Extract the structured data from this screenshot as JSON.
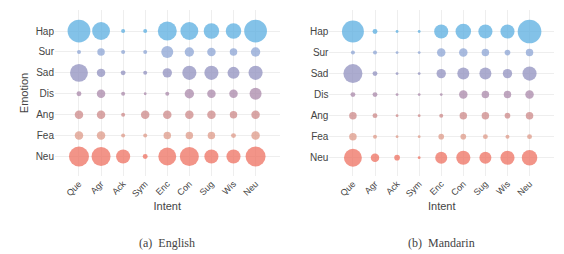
{
  "chart_data": [
    {
      "type": "bubble",
      "title": "(a)  English",
      "xlabel": "Intent",
      "ylabel": "Emotion",
      "categories": [
        "Que",
        "Agr",
        "Ack",
        "Sym",
        "Enc",
        "Con",
        "Sug",
        "Wis",
        "Neu"
      ],
      "grid": true,
      "series": [
        {
          "name": "Hap",
          "color": "#5aaee0",
          "sizes": [
            130,
            80,
            4,
            4,
            90,
            80,
            60,
            60,
            130
          ]
        },
        {
          "name": "Sur",
          "color": "#8ca4d4",
          "sizes": [
            4,
            14,
            4,
            4,
            36,
            22,
            18,
            14,
            22
          ]
        },
        {
          "name": "Sad",
          "color": "#9090bf",
          "sizes": [
            80,
            18,
            6,
            4,
            22,
            50,
            50,
            36,
            50
          ]
        },
        {
          "name": "Dis",
          "color": "#aa88aa",
          "sizes": [
            6,
            18,
            4,
            2,
            4,
            22,
            18,
            18,
            36
          ]
        },
        {
          "name": "Ang",
          "color": "#cc8888",
          "sizes": [
            18,
            18,
            4,
            18,
            18,
            18,
            18,
            14,
            18
          ]
        },
        {
          "name": "Fea",
          "color": "#dd9988",
          "sizes": [
            18,
            18,
            4,
            4,
            14,
            14,
            14,
            6,
            18
          ]
        },
        {
          "name": "Neu",
          "color": "#ee7060",
          "sizes": [
            100,
            90,
            50,
            6,
            80,
            90,
            50,
            50,
            100
          ]
        }
      ]
    },
    {
      "type": "bubble",
      "title": "(b)  Mandarin",
      "xlabel": "Intent",
      "categories": [
        "Que",
        "Agr",
        "Ack",
        "Sym",
        "Enc",
        "Con",
        "Sug",
        "Wis",
        "Neu"
      ],
      "grid": true,
      "series": [
        {
          "name": "Hap",
          "color": "#5aaee0",
          "sizes": [
            120,
            6,
            2,
            2,
            50,
            60,
            50,
            50,
            140
          ]
        },
        {
          "name": "Sur",
          "color": "#8ca4d4",
          "sizes": [
            4,
            4,
            2,
            2,
            18,
            18,
            14,
            8,
            14
          ]
        },
        {
          "name": "Sad",
          "color": "#9090bf",
          "sizes": [
            90,
            6,
            2,
            2,
            22,
            36,
            36,
            22,
            50
          ]
        },
        {
          "name": "Dis",
          "color": "#aa88aa",
          "sizes": [
            6,
            6,
            2,
            2,
            2,
            18,
            14,
            14,
            18
          ]
        },
        {
          "name": "Ang",
          "color": "#cc8888",
          "sizes": [
            14,
            6,
            2,
            2,
            4,
            14,
            14,
            8,
            14
          ]
        },
        {
          "name": "Fea",
          "color": "#dd9988",
          "sizes": [
            14,
            4,
            2,
            2,
            8,
            8,
            6,
            4,
            6
          ]
        },
        {
          "name": "Neu",
          "color": "#ee7060",
          "sizes": [
            80,
            18,
            8,
            2,
            36,
            50,
            36,
            50,
            60
          ]
        }
      ]
    }
  ]
}
